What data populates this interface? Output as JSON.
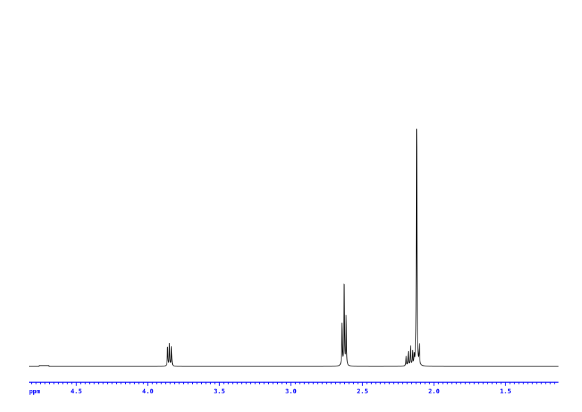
{
  "chart_data": {
    "type": "line",
    "title": "",
    "xlabel": "ppm",
    "ylabel": "",
    "xlim": [
      4.83,
      1.13
    ],
    "x_reversed": true,
    "ylim": [
      0,
      100
    ],
    "grid": false,
    "axis_color": "#0000ff",
    "line_color": "#000000",
    "x_ticks": [
      "4.5",
      "4.0",
      "3.5",
      "3.0",
      "2.5",
      "2.0",
      "1.5"
    ],
    "peaks": [
      {
        "ppm": 3.862,
        "intensity": 8
      },
      {
        "ppm": 3.848,
        "intensity": 9.3
      },
      {
        "ppm": 3.834,
        "intensity": 8
      },
      {
        "ppm": 2.643,
        "intensity": 17
      },
      {
        "ppm": 2.628,
        "intensity": 35
      },
      {
        "ppm": 2.614,
        "intensity": 20
      },
      {
        "ppm": 2.195,
        "intensity": 4
      },
      {
        "ppm": 2.18,
        "intensity": 6
      },
      {
        "ppm": 2.165,
        "intensity": 8
      },
      {
        "ppm": 2.15,
        "intensity": 6
      },
      {
        "ppm": 2.138,
        "intensity": 4
      },
      {
        "ppm": 2.121,
        "intensity": 100
      },
      {
        "ppm": 2.103,
        "intensity": 8
      }
    ]
  }
}
